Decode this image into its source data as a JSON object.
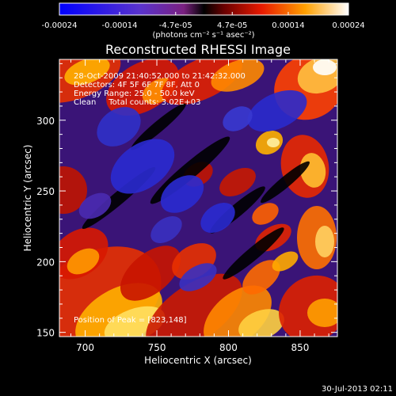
{
  "colorbar": {
    "tick_labels": [
      "-0.00024",
      "-0.00014",
      "-4.7e-05",
      "4.7e-05",
      "0.00014",
      "0.00024"
    ],
    "tick_values": [
      -0.00024,
      -0.00014,
      -4.7e-05,
      4.7e-05,
      0.00014,
      0.00024
    ],
    "range": [
      -0.00024,
      0.00024
    ],
    "unit_label": "(photons cm⁻² s⁻¹ asec⁻²)"
  },
  "chart_data": {
    "type": "heatmap",
    "title": "Reconstructed RHESSI Image",
    "xlabel": "Heliocentric X (arcsec)",
    "ylabel": "Heliocentric Y (arcsec)",
    "xlim": [
      682,
      876
    ],
    "ylim": [
      147,
      343
    ],
    "x_ticks": [
      700,
      750,
      800,
      850
    ],
    "y_ticks": [
      150,
      200,
      250,
      300
    ],
    "x_tick_labels": [
      "700",
      "750",
      "800",
      "850"
    ],
    "y_tick_labels": [
      "150",
      "200",
      "250",
      "300"
    ],
    "annotations": [
      "28-Oct-2009 21:40:52.000 to 21:42:32.000",
      "Detectors: 4F 5F 6F 7F 8F, Att 0",
      "Energy Range: 25.0 - 50.0 keV",
      "Clean     Total counts: 3.02E+03"
    ],
    "peak_label": "Position of Peak = [823,148]",
    "peak_position": [
      823,
      148
    ],
    "grid": false
  },
  "footer": {
    "timestamp": "30-Jul-2013 02:11"
  }
}
